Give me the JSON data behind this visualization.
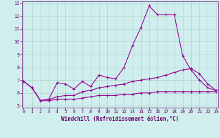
{
  "xlabel": "Windchill (Refroidissement éolien,°C)",
  "ylabel": "",
  "bg_color": "#d0eeee",
  "grid_color": "#b0d4cc",
  "line_color": "#990099",
  "x_values": [
    0,
    1,
    2,
    3,
    4,
    5,
    6,
    7,
    8,
    9,
    10,
    11,
    12,
    13,
    14,
    15,
    16,
    17,
    18,
    19,
    20,
    21,
    22,
    23
  ],
  "line1": [
    6.9,
    6.4,
    5.4,
    5.5,
    6.8,
    6.7,
    6.3,
    6.9,
    6.5,
    7.4,
    7.2,
    7.1,
    8.0,
    9.7,
    11.1,
    12.8,
    12.1,
    12.1,
    12.1,
    8.9,
    7.8,
    7.0,
    6.4,
    6.2
  ],
  "line2": [
    6.9,
    6.4,
    5.4,
    5.5,
    5.7,
    5.8,
    5.8,
    6.1,
    6.2,
    6.4,
    6.5,
    6.6,
    6.7,
    6.9,
    7.0,
    7.1,
    7.2,
    7.4,
    7.6,
    7.8,
    7.9,
    7.5,
    6.7,
    6.2
  ],
  "line3": [
    6.9,
    6.4,
    5.4,
    5.4,
    5.5,
    5.5,
    5.5,
    5.6,
    5.7,
    5.8,
    5.8,
    5.8,
    5.9,
    5.9,
    6.0,
    6.0,
    6.1,
    6.1,
    6.1,
    6.1,
    6.1,
    6.1,
    6.1,
    6.1
  ],
  "ylim": [
    5,
    13
  ],
  "xlim": [
    0,
    23
  ],
  "yticks": [
    5,
    6,
    7,
    8,
    9,
    10,
    11,
    12,
    13
  ],
  "xticks": [
    0,
    1,
    2,
    3,
    4,
    5,
    6,
    7,
    8,
    9,
    10,
    11,
    12,
    13,
    14,
    15,
    16,
    17,
    18,
    19,
    20,
    21,
    22,
    23
  ],
  "marker": "+",
  "markersize": 3.5,
  "linewidth": 0.8,
  "font_color": "#660066",
  "label_fontsize": 5.0,
  "tick_fontsize": 4.8,
  "xlabel_fontsize": 5.5
}
